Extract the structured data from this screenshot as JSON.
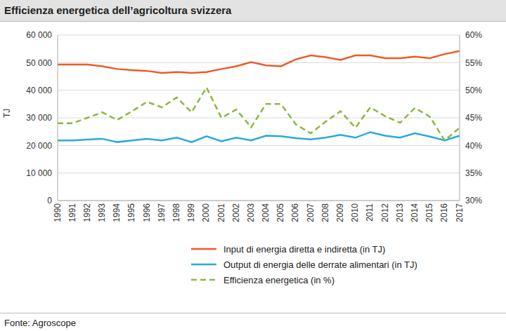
{
  "chart_data": {
    "type": "line",
    "title": "Efficienza energetica dell’agricoltura svizzera",
    "source": "Fonte: Agroscope",
    "y_label": "TJ",
    "categories": [
      "1990",
      "1991",
      "1992",
      "1993",
      "1994",
      "1995",
      "1996",
      "1997",
      "1998",
      "1999",
      "2000",
      "2001",
      "2002",
      "2003",
      "2004",
      "2005",
      "2006",
      "2007",
      "2008",
      "2009",
      "2010",
      "2011",
      "2012",
      "2013",
      "2014",
      "2015",
      "2016",
      "2017"
    ],
    "series": [
      {
        "name": "Input di energia diretta e indiretta (in TJ)",
        "color": "#ef5a28",
        "marker": "none",
        "line_style": "solid",
        "values": [
          49300,
          49300,
          49300,
          48700,
          47700,
          47300,
          47000,
          46300,
          46600,
          46300,
          46600,
          47700,
          48700,
          50200,
          49000,
          48700,
          51200,
          52600,
          52000,
          51000,
          52600,
          52600,
          51600,
          51600,
          52200,
          51600,
          53100,
          54200
        ]
      },
      {
        "name": "Output di energia delle derrate alimentari (in TJ)",
        "color": "#29a8e0",
        "marker": "none",
        "line_style": "solid",
        "values": [
          21800,
          21800,
          22100,
          22400,
          21200,
          21800,
          22400,
          21800,
          22800,
          21200,
          23300,
          21500,
          22800,
          21800,
          23500,
          23300,
          22600,
          22200,
          22800,
          23800,
          22800,
          24800,
          23500,
          22800,
          24400,
          23200,
          21800,
          23500
        ]
      },
      {
        "name": "Efficienza energetica (in %)",
        "color": "#8ab840",
        "marker": "none",
        "line_style": "dashed",
        "axis": "y2",
        "values": [
          44,
          44,
          45,
          46,
          44.6,
          46.2,
          47.9,
          46.9,
          48.7,
          46,
          50.5,
          45,
          46.5,
          43.3,
          47.5,
          47.5,
          43.8,
          42.2,
          44.3,
          46.2,
          43.2,
          46.9,
          45.3,
          44.1,
          46.8,
          45.2,
          40.9,
          43.2
        ]
      }
    ],
    "ylim": [
      0,
      60000
    ],
    "yticks": [
      0,
      {
        "value": 10000,
        "label": "10 000"
      },
      {
        "value": 20000,
        "label": "20 000"
      },
      {
        "value": 30000,
        "label": "30 000"
      },
      {
        "value": 40000,
        "label": "40 000"
      },
      {
        "value": 50000,
        "label": "50 000"
      },
      {
        "value": 60000,
        "label": "60 000"
      }
    ],
    "y2lim": [
      30,
      60
    ],
    "y2ticks": [
      {
        "value": 30,
        "label": "30%"
      },
      {
        "value": 35,
        "label": "35%"
      },
      {
        "value": 40,
        "label": "40%"
      },
      {
        "value": 45,
        "label": "45%"
      },
      {
        "value": 50,
        "label": "50%"
      },
      {
        "value": 55,
        "label": "55%"
      },
      {
        "value": 60,
        "label": "60%"
      }
    ],
    "grid": true
  }
}
